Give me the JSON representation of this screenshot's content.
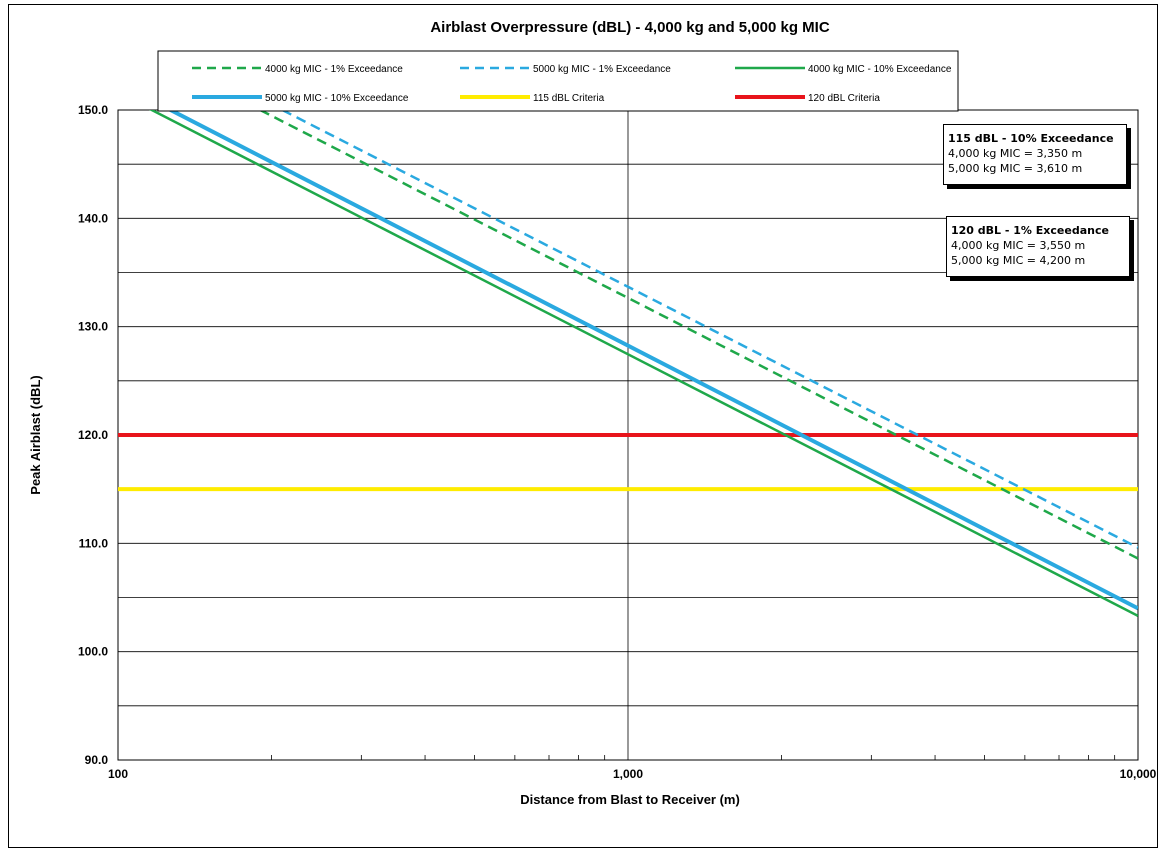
{
  "chart_data": {
    "type": "line",
    "title": "Airblast Overpressure (dBL) - 4,000 kg and 5,000 kg MIC",
    "xlabel": "Distance from Blast to Receiver (m)",
    "ylabel": "Peak Airblast (dBL)",
    "x_scale": "log",
    "xlim": [
      100,
      10000
    ],
    "ylim": [
      90,
      150
    ],
    "x_ticks": [
      100,
      1000,
      10000
    ],
    "x_tick_labels": [
      "100",
      "1,000",
      "10,000"
    ],
    "y_ticks": [
      90,
      100,
      110,
      120,
      130,
      140,
      150
    ],
    "y_tick_labels": [
      "90.0",
      "100.0",
      "110.0",
      "120.0",
      "130.0",
      "140.0",
      "150.0"
    ],
    "grid": true,
    "legend_position": "top",
    "series": [
      {
        "name": "4000 kg MIC - 1% Exceedance",
        "color": "#1fa84a",
        "style": "dashed",
        "x": [
          190,
          10000
        ],
        "y": [
          150.0,
          108.6
        ]
      },
      {
        "name": "5000 kg MIC - 1% Exceedance",
        "color": "#2aa9e0",
        "style": "dashed",
        "x": [
          210,
          10000
        ],
        "y": [
          150.0,
          109.6
        ]
      },
      {
        "name": "4000 kg MIC - 10% Exceedance",
        "color": "#1fa84a",
        "style": "solid",
        "x": [
          100,
          10000
        ],
        "y": [
          151.6,
          103.3
        ]
      },
      {
        "name": "5000 kg MIC - 10% Exceedance",
        "color": "#2aa9e0",
        "style": "solid-thick",
        "x": [
          100,
          10000
        ],
        "y": [
          152.5,
          104.0
        ]
      },
      {
        "name": "115 dBL Criteria",
        "color": "#ffec00",
        "style": "solid-thick",
        "x": [
          100,
          10000
        ],
        "y": [
          115,
          115
        ]
      },
      {
        "name": "120 dBL Criteria",
        "color": "#e8141b",
        "style": "solid-thick",
        "x": [
          100,
          10000
        ],
        "y": [
          120,
          120
        ]
      }
    ],
    "annotations": [
      {
        "title": "115 dBL - 10% Exceedance",
        "lines": [
          "4,000 kg MIC = 3,350 m",
          "5,000 kg MIC = 3,610 m"
        ]
      },
      {
        "title": "120 dBL - 1% Exceedance",
        "lines": [
          "4,000 kg MIC = 3,550 m",
          "5,000 kg MIC = 4,200 m"
        ]
      }
    ]
  }
}
